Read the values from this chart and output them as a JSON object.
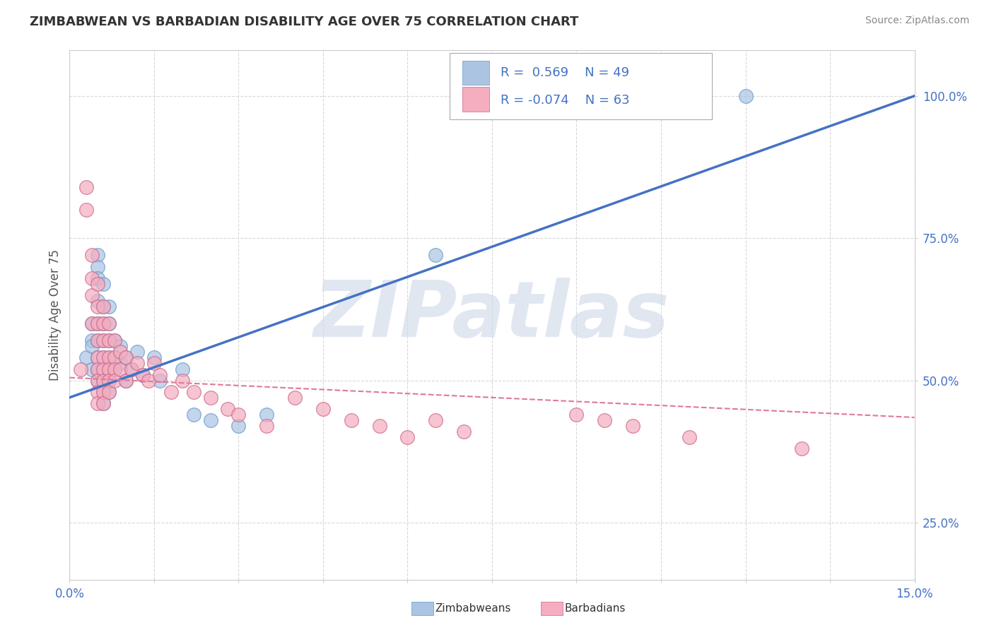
{
  "title": "ZIMBABWEAN VS BARBADIAN DISABILITY AGE OVER 75 CORRELATION CHART",
  "source": "Source: ZipAtlas.com",
  "ylabel": "Disability Age Over 75",
  "xlim": [
    0.0,
    0.15
  ],
  "ylim": [
    0.15,
    1.08
  ],
  "xticks": [
    0.0,
    0.015,
    0.03,
    0.045,
    0.06,
    0.075,
    0.09,
    0.105,
    0.12,
    0.135,
    0.15
  ],
  "xtick_labels": [
    "0.0%",
    "",
    "",
    "",
    "",
    "",
    "",
    "",
    "",
    "",
    "15.0%"
  ],
  "ytick_positions": [
    0.25,
    0.5,
    0.75,
    1.0
  ],
  "ytick_labels": [
    "25.0%",
    "50.0%",
    "75.0%",
    "100.0%"
  ],
  "zimbabwean_color": "#aac4e2",
  "barbadian_color": "#f5adc0",
  "zimbabwean_line_color": "#4472c4",
  "barbadian_line_color": "#e07898",
  "legend_text1": "R =  0.569    N = 49",
  "legend_text2": "R = -0.074    N = 63",
  "watermark": "ZIPatlas",
  "watermark_color": "#cdd8e8",
  "grid_color": "#d8d8d8",
  "background_color": "#ffffff",
  "zim_x": [
    0.003,
    0.004,
    0.004,
    0.004,
    0.004,
    0.005,
    0.005,
    0.005,
    0.005,
    0.005,
    0.005,
    0.005,
    0.005,
    0.005,
    0.006,
    0.006,
    0.006,
    0.006,
    0.006,
    0.006,
    0.006,
    0.006,
    0.006,
    0.007,
    0.007,
    0.007,
    0.007,
    0.007,
    0.007,
    0.007,
    0.008,
    0.008,
    0.008,
    0.009,
    0.009,
    0.01,
    0.01,
    0.011,
    0.012,
    0.013,
    0.015,
    0.016,
    0.02,
    0.022,
    0.025,
    0.03,
    0.035,
    0.065,
    0.12
  ],
  "zim_y": [
    0.54,
    0.57,
    0.6,
    0.56,
    0.52,
    0.72,
    0.7,
    0.68,
    0.64,
    0.6,
    0.57,
    0.54,
    0.52,
    0.5,
    0.67,
    0.63,
    0.6,
    0.57,
    0.54,
    0.52,
    0.5,
    0.48,
    0.46,
    0.63,
    0.6,
    0.57,
    0.54,
    0.52,
    0.5,
    0.48,
    0.57,
    0.54,
    0.52,
    0.56,
    0.53,
    0.54,
    0.5,
    0.52,
    0.55,
    0.51,
    0.54,
    0.5,
    0.52,
    0.44,
    0.43,
    0.42,
    0.44,
    0.72,
    1.0
  ],
  "bar_x": [
    0.002,
    0.003,
    0.003,
    0.004,
    0.004,
    0.004,
    0.004,
    0.005,
    0.005,
    0.005,
    0.005,
    0.005,
    0.005,
    0.005,
    0.005,
    0.005,
    0.006,
    0.006,
    0.006,
    0.006,
    0.006,
    0.006,
    0.006,
    0.006,
    0.007,
    0.007,
    0.007,
    0.007,
    0.007,
    0.007,
    0.008,
    0.008,
    0.008,
    0.008,
    0.009,
    0.009,
    0.01,
    0.01,
    0.011,
    0.012,
    0.013,
    0.014,
    0.015,
    0.016,
    0.018,
    0.02,
    0.022,
    0.025,
    0.028,
    0.03,
    0.035,
    0.04,
    0.045,
    0.05,
    0.055,
    0.06,
    0.065,
    0.07,
    0.09,
    0.095,
    0.1,
    0.11,
    0.13
  ],
  "bar_y": [
    0.52,
    0.8,
    0.84,
    0.72,
    0.68,
    0.65,
    0.6,
    0.67,
    0.63,
    0.6,
    0.57,
    0.54,
    0.52,
    0.5,
    0.48,
    0.46,
    0.63,
    0.6,
    0.57,
    0.54,
    0.52,
    0.5,
    0.48,
    0.46,
    0.6,
    0.57,
    0.54,
    0.52,
    0.5,
    0.48,
    0.57,
    0.54,
    0.52,
    0.5,
    0.55,
    0.52,
    0.54,
    0.5,
    0.52,
    0.53,
    0.51,
    0.5,
    0.53,
    0.51,
    0.48,
    0.5,
    0.48,
    0.47,
    0.45,
    0.44,
    0.42,
    0.47,
    0.45,
    0.43,
    0.42,
    0.4,
    0.43,
    0.41,
    0.44,
    0.43,
    0.42,
    0.4,
    0.38
  ],
  "zim_trend_x0": 0.0,
  "zim_trend_y0": 0.47,
  "zim_trend_x1": 0.15,
  "zim_trend_y1": 1.0,
  "bar_trend_x0": 0.0,
  "bar_trend_y0": 0.505,
  "bar_trend_x1": 0.15,
  "bar_trend_y1": 0.435
}
